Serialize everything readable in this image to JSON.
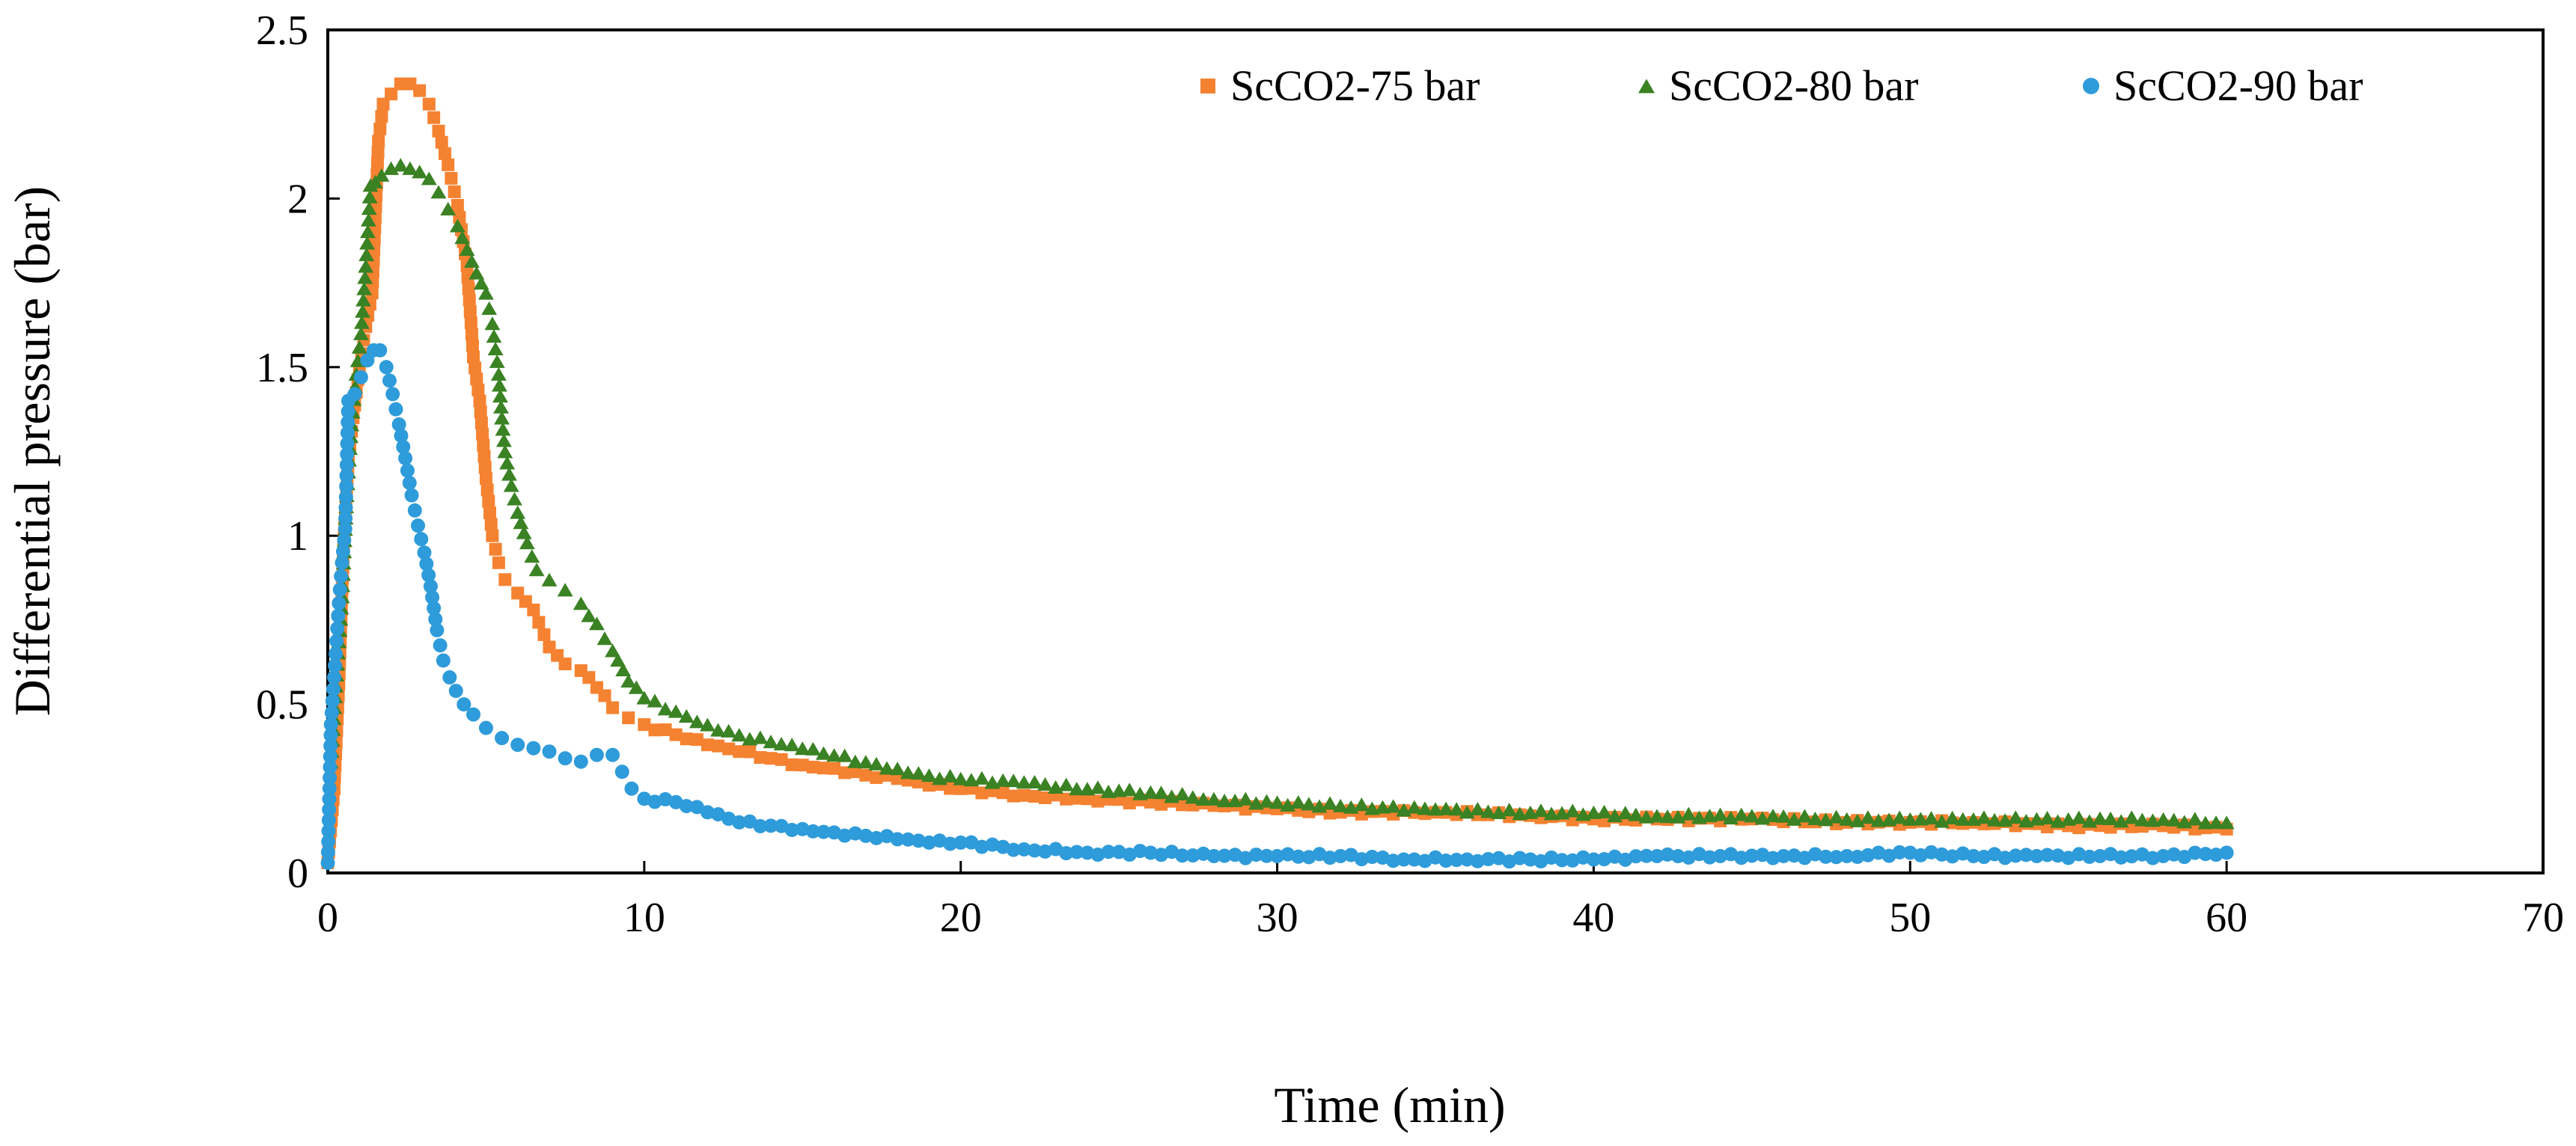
{
  "chart_data": {
    "type": "scatter",
    "title": "",
    "xlabel": "Time (min)",
    "ylabel": "Differential pressure (bar)",
    "xlim": [
      0,
      70
    ],
    "ylim": [
      0,
      2.5
    ],
    "xticks": [
      0,
      10,
      20,
      30,
      40,
      50,
      60,
      70
    ],
    "yticks": [
      0,
      0.5,
      1,
      1.5,
      2,
      2.5
    ],
    "xtick_labels": [
      "0",
      "10",
      "20",
      "30",
      "40",
      "50",
      "60",
      "70"
    ],
    "ytick_labels": [
      "0",
      "0.5",
      "1",
      "1.5",
      "2",
      "2.5"
    ],
    "grid": false,
    "legend_position": "top-right",
    "series": [
      {
        "name": "ScCO2-75 bar",
        "color": "#F58231",
        "marker": "square",
        "points": [
          [
            0.0,
            0.03
          ],
          [
            0.2,
            0.25
          ],
          [
            0.35,
            0.56
          ],
          [
            0.5,
            0.97
          ],
          [
            0.65,
            1.23
          ],
          [
            0.8,
            1.35
          ],
          [
            1.0,
            1.5
          ],
          [
            1.2,
            1.62
          ],
          [
            1.4,
            1.72
          ],
          [
            1.6,
            2.17
          ],
          [
            1.75,
            2.28
          ],
          [
            2.0,
            2.31
          ],
          [
            2.3,
            2.34
          ],
          [
            2.6,
            2.34
          ],
          [
            2.9,
            2.32
          ],
          [
            3.2,
            2.28
          ],
          [
            3.5,
            2.2
          ],
          [
            3.8,
            2.1
          ],
          [
            4.1,
            1.98
          ],
          [
            4.4,
            1.8
          ],
          [
            4.6,
            1.53
          ],
          [
            4.8,
            1.4
          ],
          [
            5.0,
            1.17
          ],
          [
            5.2,
            1.0
          ],
          [
            5.4,
            0.92
          ],
          [
            5.6,
            0.87
          ],
          [
            6.0,
            0.83
          ],
          [
            6.5,
            0.78
          ],
          [
            7.0,
            0.67
          ],
          [
            7.5,
            0.62
          ],
          [
            8.0,
            0.6
          ],
          [
            8.5,
            0.55
          ],
          [
            9.0,
            0.49
          ],
          [
            9.5,
            0.46
          ],
          [
            10.0,
            0.44
          ],
          [
            11.0,
            0.41
          ],
          [
            12.0,
            0.38
          ],
          [
            13.0,
            0.36
          ],
          [
            14.0,
            0.34
          ],
          [
            15.0,
            0.32
          ],
          [
            16.0,
            0.31
          ],
          [
            17.0,
            0.29
          ],
          [
            18.0,
            0.28
          ],
          [
            19.0,
            0.26
          ],
          [
            20.0,
            0.25
          ],
          [
            22.0,
            0.23
          ],
          [
            24.0,
            0.22
          ],
          [
            26.0,
            0.21
          ],
          [
            28.0,
            0.2
          ],
          [
            30.0,
            0.19
          ],
          [
            32.0,
            0.18
          ],
          [
            35.0,
            0.18
          ],
          [
            38.0,
            0.17
          ],
          [
            40.0,
            0.16
          ],
          [
            42.0,
            0.16
          ],
          [
            45.0,
            0.16
          ],
          [
            48.0,
            0.15
          ],
          [
            50.0,
            0.15
          ],
          [
            52.0,
            0.15
          ],
          [
            55.0,
            0.14
          ],
          [
            58.0,
            0.14
          ],
          [
            60.0,
            0.13
          ]
        ]
      },
      {
        "name": "ScCO2-80 bar",
        "color": "#3A8223",
        "marker": "triangle",
        "points": [
          [
            0.1,
            0.33
          ],
          [
            0.3,
            0.62
          ],
          [
            0.45,
            0.82
          ],
          [
            0.6,
            1.12
          ],
          [
            0.75,
            1.33
          ],
          [
            0.9,
            1.48
          ],
          [
            1.05,
            1.6
          ],
          [
            1.2,
            1.8
          ],
          [
            1.35,
            2.04
          ],
          [
            1.5,
            2.05
          ],
          [
            1.7,
            2.07
          ],
          [
            2.0,
            2.09
          ],
          [
            2.3,
            2.1
          ],
          [
            2.6,
            2.09
          ],
          [
            2.9,
            2.08
          ],
          [
            3.2,
            2.06
          ],
          [
            3.5,
            2.02
          ],
          [
            3.8,
            1.97
          ],
          [
            4.1,
            1.92
          ],
          [
            4.4,
            1.85
          ],
          [
            4.7,
            1.78
          ],
          [
            5.0,
            1.72
          ],
          [
            5.2,
            1.63
          ],
          [
            5.4,
            1.48
          ],
          [
            5.5,
            1.35
          ],
          [
            5.6,
            1.25
          ],
          [
            5.8,
            1.15
          ],
          [
            6.0,
            1.07
          ],
          [
            6.3,
            0.98
          ],
          [
            6.6,
            0.9
          ],
          [
            7.0,
            0.87
          ],
          [
            7.5,
            0.84
          ],
          [
            8.0,
            0.8
          ],
          [
            8.5,
            0.74
          ],
          [
            9.0,
            0.66
          ],
          [
            9.5,
            0.57
          ],
          [
            10.0,
            0.52
          ],
          [
            11.0,
            0.48
          ],
          [
            12.0,
            0.44
          ],
          [
            13.0,
            0.41
          ],
          [
            14.0,
            0.39
          ],
          [
            15.0,
            0.37
          ],
          [
            16.0,
            0.35
          ],
          [
            17.0,
            0.33
          ],
          [
            18.0,
            0.31
          ],
          [
            19.0,
            0.29
          ],
          [
            20.0,
            0.28
          ],
          [
            22.0,
            0.27
          ],
          [
            24.0,
            0.25
          ],
          [
            26.0,
            0.24
          ],
          [
            28.0,
            0.22
          ],
          [
            30.0,
            0.21
          ],
          [
            32.0,
            0.2
          ],
          [
            35.0,
            0.19
          ],
          [
            38.0,
            0.18
          ],
          [
            40.0,
            0.18
          ],
          [
            42.0,
            0.17
          ],
          [
            45.0,
            0.17
          ],
          [
            48.0,
            0.16
          ],
          [
            50.0,
            0.16
          ],
          [
            52.0,
            0.16
          ],
          [
            55.0,
            0.16
          ],
          [
            58.0,
            0.16
          ],
          [
            60.0,
            0.15
          ]
        ]
      },
      {
        "name": "ScCO2-90 bar",
        "color": "#2E9BDA",
        "marker": "circle",
        "points": [
          [
            0.0,
            0.03
          ],
          [
            0.1,
            0.44
          ],
          [
            0.25,
            0.65
          ],
          [
            0.35,
            0.8
          ],
          [
            0.45,
            0.92
          ],
          [
            0.55,
            1.02
          ],
          [
            0.65,
            1.4
          ],
          [
            0.85,
            1.42
          ],
          [
            1.05,
            1.47
          ],
          [
            1.25,
            1.52
          ],
          [
            1.45,
            1.55
          ],
          [
            1.65,
            1.55
          ],
          [
            1.85,
            1.5
          ],
          [
            2.05,
            1.42
          ],
          [
            2.25,
            1.33
          ],
          [
            2.45,
            1.23
          ],
          [
            2.65,
            1.12
          ],
          [
            2.85,
            1.03
          ],
          [
            3.05,
            0.95
          ],
          [
            3.25,
            0.85
          ],
          [
            3.45,
            0.72
          ],
          [
            3.65,
            0.63
          ],
          [
            3.85,
            0.58
          ],
          [
            4.05,
            0.54
          ],
          [
            4.3,
            0.5
          ],
          [
            4.6,
            0.47
          ],
          [
            5.0,
            0.43
          ],
          [
            5.5,
            0.4
          ],
          [
            6.0,
            0.38
          ],
          [
            6.5,
            0.37
          ],
          [
            7.0,
            0.36
          ],
          [
            7.5,
            0.34
          ],
          [
            8.0,
            0.33
          ],
          [
            8.5,
            0.35
          ],
          [
            9.0,
            0.35
          ],
          [
            9.3,
            0.3
          ],
          [
            9.6,
            0.25
          ],
          [
            10.0,
            0.22
          ],
          [
            11.0,
            0.21
          ],
          [
            12.0,
            0.18
          ],
          [
            13.0,
            0.15
          ],
          [
            14.0,
            0.14
          ],
          [
            15.0,
            0.13
          ],
          [
            16.0,
            0.12
          ],
          [
            17.0,
            0.11
          ],
          [
            18.0,
            0.1
          ],
          [
            19.0,
            0.09
          ],
          [
            20.0,
            0.09
          ],
          [
            22.0,
            0.07
          ],
          [
            24.0,
            0.06
          ],
          [
            26.0,
            0.06
          ],
          [
            28.0,
            0.05
          ],
          [
            30.0,
            0.05
          ],
          [
            32.0,
            0.05
          ],
          [
            34.0,
            0.04
          ],
          [
            36.0,
            0.04
          ],
          [
            38.0,
            0.04
          ],
          [
            40.0,
            0.04
          ],
          [
            42.0,
            0.05
          ],
          [
            44.0,
            0.05
          ],
          [
            46.0,
            0.05
          ],
          [
            48.0,
            0.05
          ],
          [
            50.0,
            0.06
          ],
          [
            52.0,
            0.05
          ],
          [
            54.0,
            0.05
          ],
          [
            56.0,
            0.05
          ],
          [
            58.0,
            0.05
          ],
          [
            60.0,
            0.06
          ]
        ]
      }
    ]
  }
}
